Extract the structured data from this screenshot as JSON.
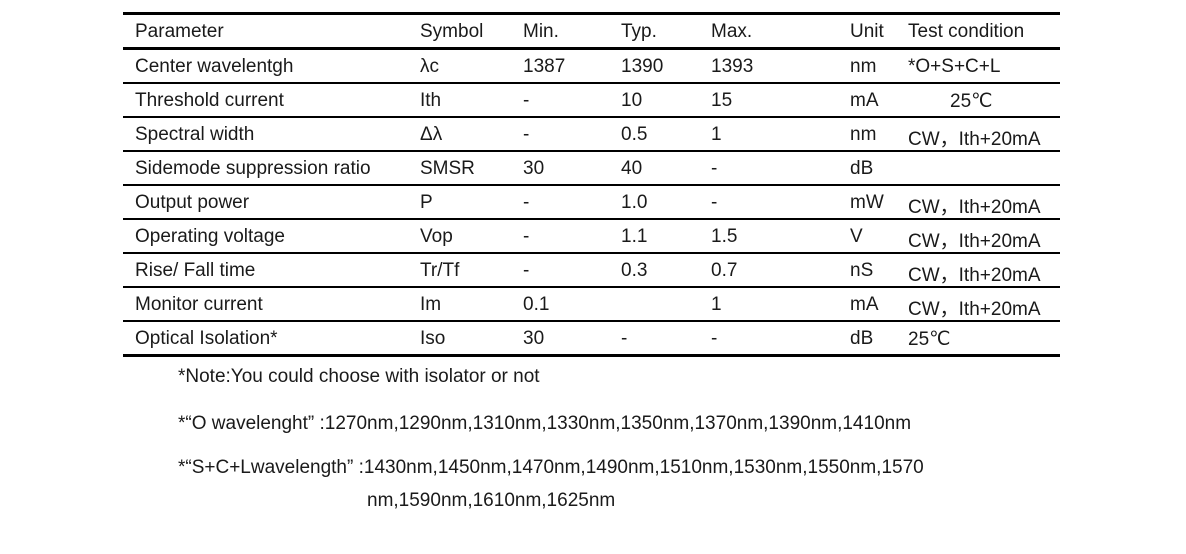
{
  "table": {
    "headers": [
      "Parameter",
      "Symbol",
      "Min.",
      "Typ.",
      "Max.",
      "Unit",
      "Test condition"
    ],
    "rows": [
      [
        "Center wavelentgh",
        "λc",
        "1387",
        "1390",
        "1393",
        "nm",
        "*O+S+C+L"
      ],
      [
        "Threshold current",
        "Ith",
        "-",
        "10",
        "15",
        "mA",
        "25℃"
      ],
      [
        "Spectral width",
        "Δλ",
        "-",
        "0.5",
        "1",
        "nm",
        "CW，Ith+20mA"
      ],
      [
        "Sidemode suppression ratio",
        "SMSR",
        "30",
        "40",
        "-",
        "dB",
        ""
      ],
      [
        "Output power",
        "P",
        "-",
        "1.0",
        "-",
        "mW",
        "CW，Ith+20mA"
      ],
      [
        "Operating voltage",
        "Vop",
        "-",
        "1.1",
        "1.5",
        "V",
        "CW，Ith+20mA"
      ],
      [
        "Rise/ Fall time",
        "Tr/Tf",
        "-",
        "0.3",
        "0.7",
        "nS",
        "CW，Ith+20mA"
      ],
      [
        "Monitor current",
        "Im",
        "0.1",
        "",
        "1",
        "mA",
        "CW，Ith+20mA"
      ],
      [
        "Optical Isolation*",
        "Iso",
        "30",
        "-",
        "-",
        "dB",
        "25℃"
      ]
    ]
  },
  "notes": [
    "*Note:You could choose with isolator or not",
    "*“O wavelenght” :1270nm,1290nm,1310nm,1330nm,1350nm,1370nm,1390nm,1410nm",
    "*“S+C+Lwavelength” :1430nm,1450nm,1470nm,1490nm,1510nm,1530nm,1550nm,1570",
    "nm,1590nm,1610nm,1625nm"
  ]
}
